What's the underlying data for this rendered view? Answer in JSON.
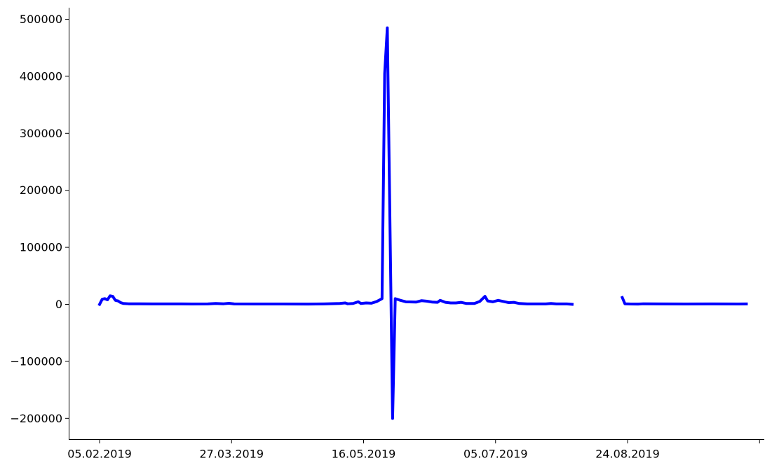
{
  "chart_data": {
    "type": "line",
    "title": "",
    "xlabel": "",
    "ylabel": "",
    "ylim": [
      -235000,
      520000
    ],
    "xlim": [
      "2019-02-05",
      "2019-10-17"
    ],
    "grid": false,
    "legend": "none",
    "y_ticks": [
      {
        "value": 500000,
        "label": "500000"
      },
      {
        "value": 400000,
        "label": "400000"
      },
      {
        "value": 300000,
        "label": "300000"
      },
      {
        "value": 200000,
        "label": "200000"
      },
      {
        "value": 100000,
        "label": "100000"
      },
      {
        "value": 0,
        "label": "0"
      },
      {
        "value": -100000,
        "label": "−100000"
      },
      {
        "value": -200000,
        "label": "−200000"
      }
    ],
    "x_ticks": [
      {
        "date": "2019-02-05",
        "label": "05.02.2019"
      },
      {
        "date": "2019-03-27",
        "label": "27.03.2019"
      },
      {
        "date": "2019-05-16",
        "label": "16.05.2019"
      },
      {
        "date": "2019-07-05",
        "label": "05.07.2019"
      },
      {
        "date": "2019-08-24",
        "label": "24.08.2019"
      },
      {
        "date": "2019-10-13",
        "label": ""
      }
    ],
    "series": [
      {
        "color": "#0000ff",
        "points": [
          [
            "2019-02-05",
            0
          ],
          [
            "2019-02-06",
            9000
          ],
          [
            "2019-02-07",
            10000
          ],
          [
            "2019-02-08",
            8000
          ],
          [
            "2019-02-09",
            15000
          ],
          [
            "2019-02-10",
            14000
          ],
          [
            "2019-02-11",
            7000
          ],
          [
            "2019-02-12",
            6000
          ],
          [
            "2019-02-13",
            3000
          ],
          [
            "2019-02-14",
            1500
          ],
          [
            "2019-02-16",
            1000
          ],
          [
            "2019-02-20",
            1000
          ],
          [
            "2019-02-25",
            800
          ],
          [
            "2019-03-02",
            700
          ],
          [
            "2019-03-08",
            800
          ],
          [
            "2019-03-12",
            600
          ],
          [
            "2019-03-18",
            800
          ],
          [
            "2019-03-21",
            1500
          ],
          [
            "2019-03-24",
            1000
          ],
          [
            "2019-03-26",
            1800
          ],
          [
            "2019-03-28",
            800
          ],
          [
            "2019-04-05",
            600
          ],
          [
            "2019-04-15",
            600
          ],
          [
            "2019-04-25",
            500
          ],
          [
            "2019-05-01",
            700
          ],
          [
            "2019-05-07",
            1500
          ],
          [
            "2019-05-09",
            2500
          ],
          [
            "2019-05-10",
            1000
          ],
          [
            "2019-05-12",
            1500
          ],
          [
            "2019-05-14",
            4500
          ],
          [
            "2019-05-15",
            1500
          ],
          [
            "2019-05-17",
            2500
          ],
          [
            "2019-05-19",
            2000
          ],
          [
            "2019-05-21",
            5000
          ],
          [
            "2019-05-23",
            10000
          ],
          [
            "2019-05-24",
            405000
          ],
          [
            "2019-05-25",
            485000
          ],
          [
            "2019-05-27",
            -200000
          ],
          [
            "2019-05-28",
            10000
          ],
          [
            "2019-05-30",
            7000
          ],
          [
            "2019-06-01",
            4500
          ],
          [
            "2019-06-05",
            4000
          ],
          [
            "2019-06-07",
            6500
          ],
          [
            "2019-06-09",
            5500
          ],
          [
            "2019-06-11",
            4000
          ],
          [
            "2019-06-13",
            3500
          ],
          [
            "2019-06-14",
            7000
          ],
          [
            "2019-06-16",
            3500
          ],
          [
            "2019-06-18",
            2500
          ],
          [
            "2019-06-20",
            2500
          ],
          [
            "2019-06-22",
            3500
          ],
          [
            "2019-06-24",
            1500
          ],
          [
            "2019-06-27",
            1500
          ],
          [
            "2019-06-29",
            5000
          ],
          [
            "2019-07-01",
            14000
          ],
          [
            "2019-07-02",
            6000
          ],
          [
            "2019-07-04",
            4500
          ],
          [
            "2019-07-06",
            7000
          ],
          [
            "2019-07-08",
            5000
          ],
          [
            "2019-07-10",
            3000
          ],
          [
            "2019-07-12",
            3500
          ],
          [
            "2019-07-14",
            1500
          ],
          [
            "2019-07-17",
            700
          ],
          [
            "2019-07-24",
            700
          ],
          [
            "2019-07-26",
            1500
          ],
          [
            "2019-07-28",
            700
          ],
          [
            "2019-08-01",
            700
          ],
          [
            "2019-08-03",
            0
          ],
          null,
          [
            "2019-08-22",
            12000
          ],
          [
            "2019-08-23",
            1000
          ],
          [
            "2019-08-25",
            600
          ],
          [
            "2019-08-28",
            500
          ],
          [
            "2019-08-30",
            1000
          ],
          [
            "2019-09-05",
            800
          ],
          [
            "2019-09-15",
            600
          ],
          [
            "2019-09-25",
            800
          ],
          [
            "2019-10-05",
            600
          ],
          [
            "2019-10-08",
            700
          ]
        ]
      }
    ]
  }
}
